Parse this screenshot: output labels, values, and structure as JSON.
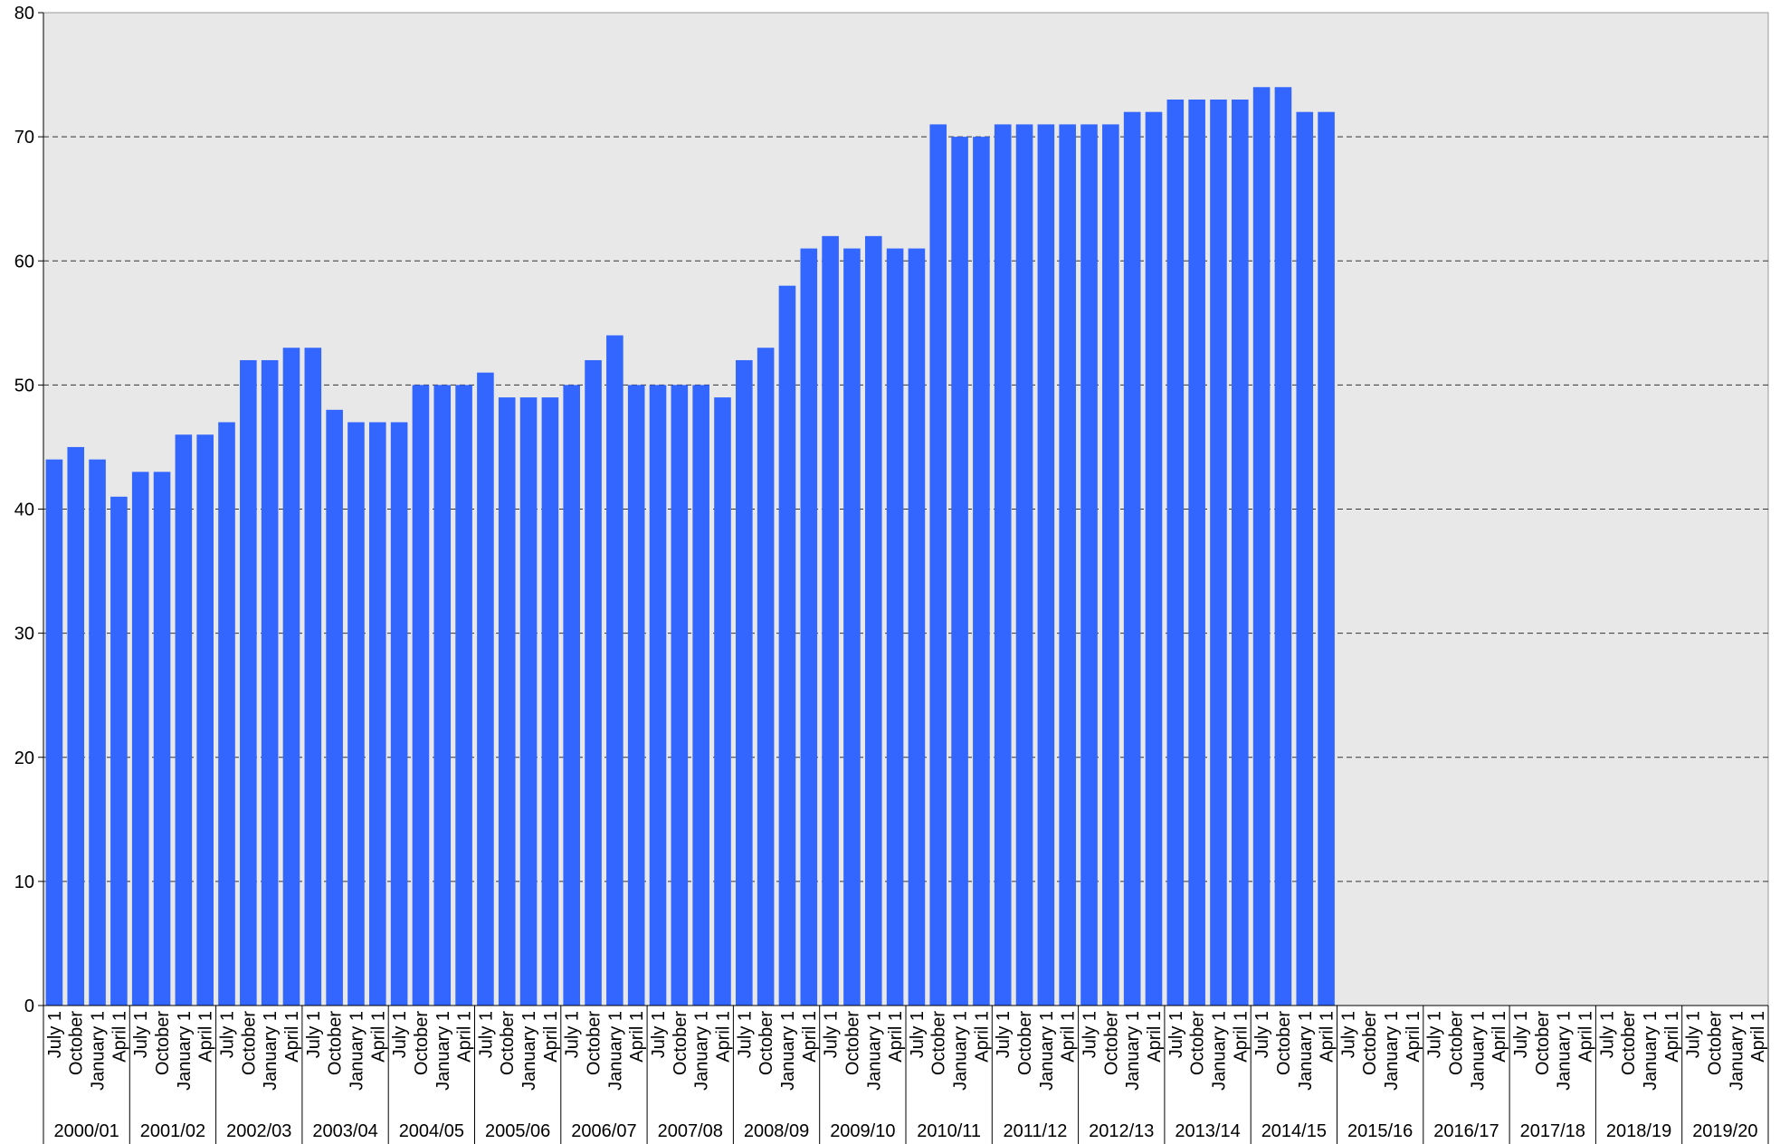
{
  "chart_data": {
    "type": "bar",
    "categories": [
      "July 1",
      "October",
      "January 1",
      "April 1",
      "July 1",
      "October",
      "January 1",
      "April 1",
      "July 1",
      "October",
      "January 1",
      "April 1",
      "July 1",
      "October",
      "January 1",
      "April 1",
      "July 1",
      "October",
      "January 1",
      "April 1",
      "July 1",
      "October",
      "January 1",
      "April 1",
      "July 1",
      "October",
      "January 1",
      "April 1",
      "July 1",
      "October",
      "January 1",
      "April 1",
      "July 1",
      "October",
      "January 1",
      "April 1",
      "July 1",
      "October",
      "January 1",
      "April 1",
      "July 1",
      "October",
      "January 1",
      "April 1",
      "July 1",
      "October",
      "January 1",
      "April 1",
      "July 1",
      "October",
      "January 1",
      "April 1",
      "July 1",
      "October",
      "January 1",
      "April 1",
      "July 1",
      "October",
      "January 1",
      "April 1",
      "July 1",
      "October",
      "January 1",
      "April 1",
      "July 1",
      "October",
      "January 1",
      "April 1",
      "July 1",
      "October",
      "January 1",
      "April 1",
      "July 1",
      "October",
      "January 1",
      "April 1",
      "July 1",
      "October",
      "January 1",
      "April 1"
    ],
    "groups": [
      "2000/01",
      "2001/02",
      "2002/03",
      "2003/04",
      "2004/05",
      "2005/06",
      "2006/07",
      "2007/08",
      "2008/09",
      "2009/10",
      "2010/11",
      "2011/12",
      "2012/13",
      "2013/14",
      "2014/15",
      "2015/16",
      "2016/17",
      "2017/18",
      "2018/19",
      "2019/20"
    ],
    "values": [
      44,
      45,
      44,
      41,
      43,
      43,
      46,
      46,
      47,
      52,
      52,
      53,
      53,
      48,
      47,
      47,
      47,
      50,
      50,
      50,
      51,
      49,
      49,
      49,
      50,
      52,
      54,
      50,
      50,
      50,
      50,
      49,
      52,
      53,
      58,
      61,
      62,
      61,
      62,
      61,
      61,
      71,
      70,
      70,
      71,
      71,
      71,
      71,
      71,
      71,
      72,
      72,
      73,
      73,
      73,
      73,
      74,
      74,
      72,
      72,
      null,
      null,
      null,
      null,
      null,
      null,
      null,
      null,
      null,
      null,
      null,
      null,
      null,
      null,
      null,
      null,
      null,
      null,
      null,
      null
    ],
    "color": "#3366ff",
    "ylim": [
      0,
      80
    ],
    "yticks": [
      0,
      10,
      20,
      30,
      40,
      50,
      60,
      70,
      80
    ],
    "grid": true
  }
}
